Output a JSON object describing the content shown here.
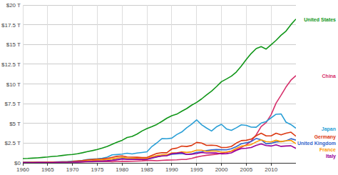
{
  "chart_data": {
    "type": "line",
    "x": [
      1960,
      1961,
      1962,
      1963,
      1964,
      1965,
      1966,
      1967,
      1968,
      1969,
      1970,
      1971,
      1972,
      1973,
      1974,
      1975,
      1976,
      1977,
      1978,
      1979,
      1980,
      1981,
      1982,
      1983,
      1984,
      1985,
      1986,
      1987,
      1988,
      1989,
      1990,
      1991,
      1992,
      1993,
      1994,
      1995,
      1996,
      1997,
      1998,
      1999,
      2000,
      2001,
      2002,
      2003,
      2004,
      2005,
      2006,
      2007,
      2008,
      2009,
      2010,
      2011,
      2012,
      2013,
      2014,
      2015
    ],
    "series": [
      {
        "name": "United States",
        "color": "#109618",
        "values": [
          0.54,
          0.56,
          0.6,
          0.64,
          0.69,
          0.74,
          0.81,
          0.86,
          0.94,
          1.02,
          1.07,
          1.16,
          1.28,
          1.43,
          1.55,
          1.69,
          1.88,
          2.09,
          2.36,
          2.63,
          2.86,
          3.21,
          3.35,
          3.64,
          4.04,
          4.35,
          4.59,
          4.87,
          5.25,
          5.66,
          5.98,
          6.17,
          6.54,
          6.88,
          7.31,
          7.66,
          8.1,
          8.61,
          9.09,
          9.66,
          10.28,
          10.62,
          10.98,
          11.51,
          12.27,
          13.09,
          13.86,
          14.48,
          14.72,
          14.42,
          14.96,
          15.52,
          16.16,
          16.69,
          17.52,
          18.22
        ]
      },
      {
        "name": "China",
        "color": "#d6306b",
        "values": [
          0.06,
          0.05,
          0.047,
          0.051,
          0.059,
          0.07,
          0.076,
          0.072,
          0.07,
          0.079,
          0.093,
          0.099,
          0.114,
          0.139,
          0.144,
          0.163,
          0.154,
          0.175,
          0.15,
          0.178,
          0.191,
          0.196,
          0.205,
          0.23,
          0.26,
          0.309,
          0.301,
          0.273,
          0.312,
          0.348,
          0.361,
          0.383,
          0.427,
          0.445,
          0.564,
          0.734,
          0.864,
          0.962,
          1.029,
          1.094,
          1.211,
          1.339,
          1.471,
          1.66,
          1.955,
          2.286,
          2.752,
          3.552,
          4.598,
          5.11,
          6.101,
          7.573,
          8.561,
          9.607,
          10.48,
          11.06
        ]
      },
      {
        "name": "Japan",
        "color": "#2a9fd6",
        "values": [
          0.044,
          0.054,
          0.06,
          0.069,
          0.082,
          0.091,
          0.106,
          0.124,
          0.147,
          0.172,
          0.213,
          0.24,
          0.318,
          0.432,
          0.479,
          0.521,
          0.586,
          0.721,
          1.014,
          1.055,
          1.105,
          1.218,
          1.135,
          1.244,
          1.318,
          1.399,
          2.079,
          2.533,
          3.072,
          3.054,
          3.133,
          3.584,
          3.909,
          4.454,
          4.907,
          5.449,
          4.834,
          4.414,
          4.033,
          4.563,
          4.888,
          4.304,
          4.115,
          4.445,
          4.815,
          4.755,
          4.53,
          4.515,
          5.038,
          5.231,
          5.7,
          6.157,
          6.203,
          5.156,
          4.85,
          4.389
        ]
      },
      {
        "name": "Germany",
        "color": "#dc3912",
        "values": [
          null,
          null,
          null,
          null,
          null,
          null,
          null,
          null,
          null,
          null,
          0.209,
          0.241,
          0.284,
          0.373,
          0.428,
          0.467,
          0.496,
          0.574,
          0.709,
          0.825,
          0.882,
          0.745,
          0.72,
          0.712,
          0.666,
          0.677,
          0.95,
          1.188,
          1.285,
          1.278,
          1.765,
          1.866,
          2.123,
          2.068,
          2.206,
          2.592,
          2.504,
          2.218,
          2.243,
          2.2,
          1.95,
          1.945,
          2.08,
          2.506,
          2.815,
          2.861,
          3.003,
          3.44,
          3.752,
          3.418,
          3.417,
          3.758,
          3.544,
          3.753,
          3.89,
          3.376
        ]
      },
      {
        "name": "United Kingdom",
        "color": "#3366cc",
        "values": [
          0.073,
          0.077,
          0.081,
          0.086,
          0.094,
          0.101,
          0.107,
          0.111,
          0.104,
          0.112,
          0.125,
          0.141,
          0.16,
          0.187,
          0.206,
          0.242,
          0.232,
          0.263,
          0.336,
          0.438,
          0.565,
          0.54,
          0.515,
          0.49,
          0.462,
          0.489,
          0.601,
          0.745,
          0.91,
          0.926,
          1.093,
          1.142,
          1.179,
          1.061,
          1.14,
          1.335,
          1.405,
          1.554,
          1.643,
          1.687,
          1.665,
          1.649,
          1.785,
          2.054,
          2.422,
          2.543,
          2.708,
          3.091,
          2.924,
          2.411,
          2.475,
          2.659,
          2.704,
          2.786,
          3.065,
          2.885
        ]
      },
      {
        "name": "France",
        "color": "#ff9900",
        "values": [
          0.062,
          0.068,
          0.076,
          0.085,
          0.094,
          0.102,
          0.11,
          0.119,
          0.13,
          0.141,
          0.148,
          0.165,
          0.203,
          0.264,
          0.286,
          0.361,
          0.372,
          0.41,
          0.506,
          0.614,
          0.701,
          0.615,
          0.585,
          0.559,
          0.53,
          0.553,
          0.771,
          0.934,
          1.019,
          1.025,
          1.269,
          1.269,
          1.401,
          1.323,
          1.394,
          1.601,
          1.606,
          1.452,
          1.503,
          1.492,
          1.362,
          1.377,
          1.494,
          1.84,
          2.116,
          2.197,
          2.32,
          2.658,
          2.918,
          2.69,
          2.643,
          2.862,
          2.681,
          2.808,
          2.849,
          2.433
        ]
      },
      {
        "name": "Italy",
        "color": "#990099",
        "values": [
          0.04,
          0.045,
          0.05,
          0.058,
          0.063,
          0.068,
          0.073,
          0.081,
          0.088,
          0.097,
          0.113,
          0.124,
          0.144,
          0.175,
          0.199,
          0.227,
          0.225,
          0.257,
          0.315,
          0.394,
          0.477,
          0.43,
          0.428,
          0.446,
          0.437,
          0.449,
          0.626,
          0.777,
          0.864,
          0.909,
          1.178,
          1.232,
          1.317,
          1.065,
          1.096,
          1.175,
          1.313,
          1.242,
          1.27,
          1.252,
          1.147,
          1.168,
          1.271,
          1.576,
          1.806,
          1.857,
          1.948,
          2.211,
          2.405,
          2.191,
          2.134,
          2.291,
          2.09,
          2.141,
          2.159,
          1.834
        ]
      }
    ],
    "xlim": [
      1960,
      2015
    ],
    "xticks": [
      1960,
      1965,
      1970,
      1975,
      1980,
      1985,
      1990,
      1995,
      2000,
      2005,
      2010
    ],
    "ylim": [
      0,
      20
    ],
    "yticks": [
      {
        "value": 0,
        "label": "$0"
      },
      {
        "value": 2.5,
        "label": "$2.5 T"
      },
      {
        "value": 5,
        "label": "$5 T"
      },
      {
        "value": 7.5,
        "label": "$7.5 T"
      },
      {
        "value": 10,
        "label": "$10 T"
      },
      {
        "value": 12.5,
        "label": "$12.5 T"
      },
      {
        "value": 15,
        "label": "$15 T"
      },
      {
        "value": 17.5,
        "label": "$17.5 T"
      },
      {
        "value": 20,
        "label": "$20 T"
      }
    ],
    "grid": true
  }
}
